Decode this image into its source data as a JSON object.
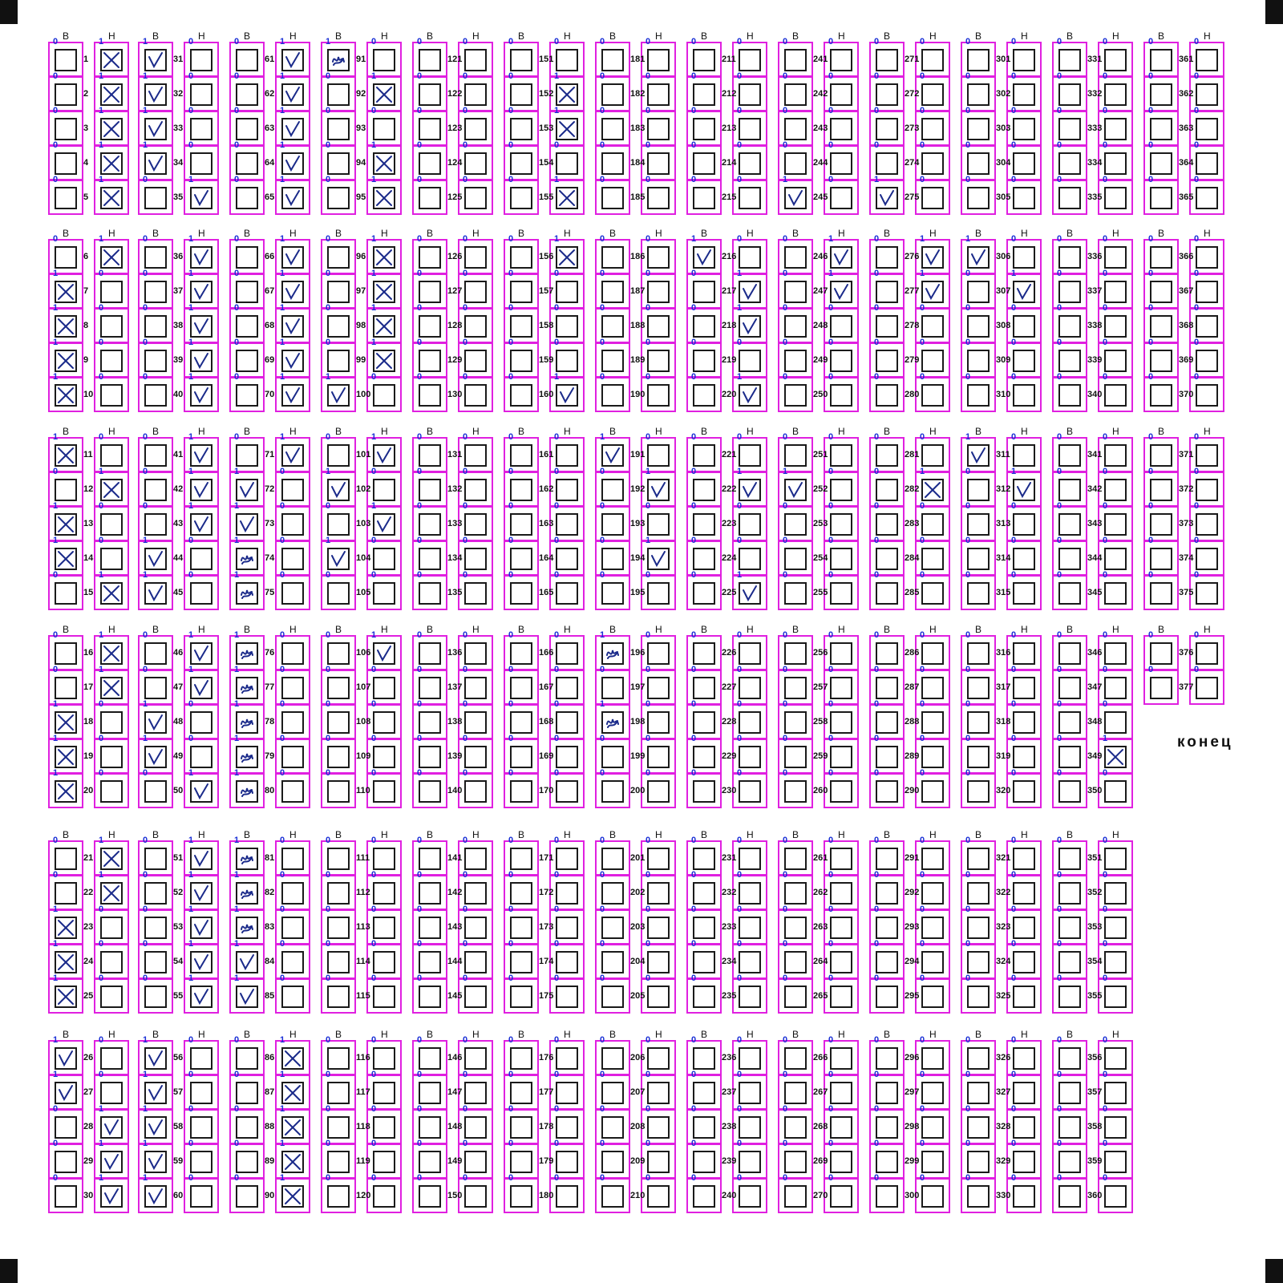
{
  "form": {
    "end_label": "конец",
    "column_headers": [
      "В",
      "Н"
    ],
    "bit_values": [
      "0",
      "1"
    ]
  },
  "colors": {
    "cell_border": "#e020e0",
    "mark_ink": "#1a2a8a",
    "bit_label": "#1a2fd6",
    "box_border": "#1a1a1a"
  },
  "marks": {
    "cross_V": [
      7,
      8,
      9,
      10,
      11,
      13,
      14,
      18,
      19,
      20,
      23,
      24,
      25
    ],
    "cross_N": [
      1,
      2,
      3,
      4,
      5,
      6,
      12,
      15,
      16,
      17,
      21,
      22,
      97,
      98,
      99,
      96,
      94,
      95,
      92,
      152,
      153,
      155,
      282,
      349,
      156
    ],
    "cross_T": [
      86,
      87,
      88,
      89,
      90
    ],
    "check_V": [
      26,
      27,
      31,
      32,
      33,
      34,
      44,
      45,
      48,
      49,
      56,
      57,
      58,
      59,
      60
    ],
    "check_N": [
      28,
      29,
      30,
      35,
      36,
      37,
      38,
      39,
      40,
      41,
      42,
      43,
      46,
      47,
      50,
      51,
      52,
      53,
      54,
      55,
      61,
      62,
      63,
      64,
      65,
      66,
      67,
      68,
      69,
      70,
      71,
      101,
      103,
      106,
      160,
      192,
      194,
      217,
      218,
      220,
      222,
      225,
      246,
      247,
      276,
      277,
      307,
      312
    ],
    "check_T": [
      72,
      73,
      84,
      85,
      100,
      102,
      104,
      191,
      216,
      245,
      275,
      306,
      252,
      311
    ],
    "scribble_T": [
      74,
      75,
      76,
      77,
      78,
      79,
      80,
      81,
      82,
      83,
      91,
      196,
      198
    ]
  },
  "ones": {
    "first": [
      1,
      2,
      3,
      4,
      5,
      7,
      8,
      9,
      10,
      11,
      13,
      14,
      18,
      19,
      20,
      23,
      24,
      25,
      26,
      27
    ],
    "second": [
      1,
      2,
      3,
      4,
      5,
      6,
      12,
      15,
      16,
      17,
      21,
      22,
      28,
      29,
      30
    ],
    "third": [
      31,
      32,
      33,
      34,
      44,
      45,
      48,
      49,
      56,
      57,
      58,
      59,
      60
    ],
    "fourth": [
      35,
      36,
      37,
      38,
      39,
      40,
      41,
      42,
      43,
      46,
      47,
      50,
      51,
      52,
      53,
      54,
      55
    ],
    "fifth": [
      72,
      73,
      74,
      75,
      76,
      77,
      78,
      79,
      80,
      84,
      85,
      86,
      87,
      88,
      89,
      90
    ],
    "sixth": [
      61,
      62,
      63,
      64,
      65,
      66,
      67,
      68,
      69,
      70,
      71,
      81,
      82,
      83
    ]
  }
}
